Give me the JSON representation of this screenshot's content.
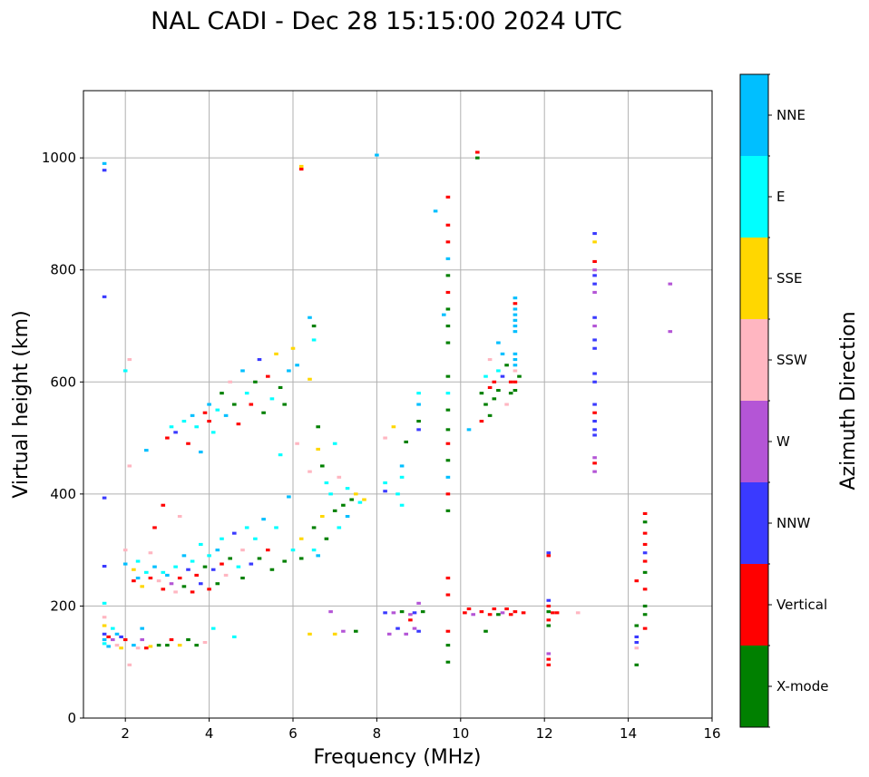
{
  "chart_data": {
    "type": "scatter",
    "title": "NAL CADI - Dec 28 15:15:00 2024 UTC",
    "xlabel": "Frequency (MHz)",
    "ylabel": "Virtual height (km)",
    "xlim": [
      1,
      16
    ],
    "ylim": [
      0,
      1120
    ],
    "xticks": [
      2,
      4,
      6,
      8,
      10,
      12,
      14,
      16
    ],
    "yticks": [
      0,
      200,
      400,
      600,
      800,
      1000
    ],
    "grid": true,
    "colorbar": {
      "title": "Azimuth Direction",
      "categories": [
        {
          "name": "X-mode",
          "color": "#008000"
        },
        {
          "name": "Vertical",
          "color": "#ff0000"
        },
        {
          "name": "NNW",
          "color": "#3a3aff"
        },
        {
          "name": "W",
          "color": "#b455d6"
        },
        {
          "name": "SSW",
          "color": "#ffb6c1"
        },
        {
          "name": "SSE",
          "color": "#ffd700"
        },
        {
          "name": "E",
          "color": "#00ffff"
        },
        {
          "name": "NNE",
          "color": "#00bfff"
        }
      ]
    },
    "point_width_mhz": 0.1,
    "point_height_km": 5,
    "points": [
      [
        1.5,
        990,
        "NNE"
      ],
      [
        1.5,
        978,
        "NNW"
      ],
      [
        1.5,
        752,
        "NNW"
      ],
      [
        1.5,
        393,
        "NNW"
      ],
      [
        1.5,
        271,
        "NNW"
      ],
      [
        1.5,
        205,
        "E"
      ],
      [
        1.5,
        180,
        "SSW"
      ],
      [
        1.5,
        165,
        "SSE"
      ],
      [
        1.5,
        150,
        "NNW"
      ],
      [
        1.5,
        140,
        "NNE"
      ],
      [
        1.5,
        133,
        "E"
      ],
      [
        1.6,
        145,
        "Vertical"
      ],
      [
        1.6,
        128,
        "NNE"
      ],
      [
        1.7,
        160,
        "E"
      ],
      [
        1.7,
        140,
        "W"
      ],
      [
        1.8,
        150,
        "NNE"
      ],
      [
        1.8,
        130,
        "SSW"
      ],
      [
        1.9,
        145,
        "NNW"
      ],
      [
        1.9,
        125,
        "SSE"
      ],
      [
        2.0,
        140,
        "Vertical"
      ],
      [
        2.0,
        620,
        "E"
      ],
      [
        2.0,
        300,
        "SSW"
      ],
      [
        2.0,
        275,
        "NNE"
      ],
      [
        2.1,
        95,
        "SSW"
      ],
      [
        2.1,
        640,
        "SSW"
      ],
      [
        2.1,
        450,
        "SSW"
      ],
      [
        2.2,
        265,
        "SSE"
      ],
      [
        2.2,
        245,
        "Vertical"
      ],
      [
        2.2,
        130,
        "NNE"
      ],
      [
        2.3,
        280,
        "E"
      ],
      [
        2.3,
        250,
        "NNE"
      ],
      [
        2.3,
        125,
        "SSW"
      ],
      [
        2.4,
        235,
        "SSE"
      ],
      [
        2.4,
        160,
        "NNE"
      ],
      [
        2.4,
        140,
        "W"
      ],
      [
        2.5,
        478,
        "NNE"
      ],
      [
        2.5,
        260,
        "E"
      ],
      [
        2.5,
        125,
        "Vertical"
      ],
      [
        2.6,
        250,
        "Vertical"
      ],
      [
        2.6,
        295,
        "SSW"
      ],
      [
        2.6,
        128,
        "SSE"
      ],
      [
        2.7,
        270,
        "NNE"
      ],
      [
        2.7,
        340,
        "Vertical"
      ],
      [
        2.8,
        245,
        "SSW"
      ],
      [
        2.8,
        130,
        "X-mode"
      ],
      [
        2.9,
        230,
        "Vertical"
      ],
      [
        2.9,
        260,
        "E"
      ],
      [
        2.9,
        380,
        "Vertical"
      ],
      [
        3.0,
        500,
        "Vertical"
      ],
      [
        3.0,
        255,
        "NNE"
      ],
      [
        3.0,
        130,
        "X-mode"
      ],
      [
        3.1,
        520,
        "E"
      ],
      [
        3.1,
        240,
        "W"
      ],
      [
        3.1,
        140,
        "Vertical"
      ],
      [
        3.2,
        510,
        "NNW"
      ],
      [
        3.2,
        270,
        "E"
      ],
      [
        3.2,
        225,
        "SSW"
      ],
      [
        3.3,
        250,
        "Vertical"
      ],
      [
        3.3,
        360,
        "SSW"
      ],
      [
        3.3,
        130,
        "SSE"
      ],
      [
        3.4,
        530,
        "E"
      ],
      [
        3.4,
        290,
        "NNE"
      ],
      [
        3.4,
        235,
        "X-mode"
      ],
      [
        3.5,
        490,
        "Vertical"
      ],
      [
        3.5,
        265,
        "NNW"
      ],
      [
        3.5,
        140,
        "X-mode"
      ],
      [
        3.6,
        540,
        "NNE"
      ],
      [
        3.6,
        280,
        "E"
      ],
      [
        3.6,
        225,
        "Vertical"
      ],
      [
        3.7,
        520,
        "E"
      ],
      [
        3.7,
        255,
        "Vertical"
      ],
      [
        3.7,
        130,
        "X-mode"
      ],
      [
        3.8,
        475,
        "NNE"
      ],
      [
        3.8,
        310,
        "E"
      ],
      [
        3.8,
        240,
        "NNW"
      ],
      [
        3.9,
        545,
        "Vertical"
      ],
      [
        3.9,
        270,
        "X-mode"
      ],
      [
        3.9,
        135,
        "SSW"
      ],
      [
        4.0,
        530,
        "Vertical"
      ],
      [
        4.0,
        560,
        "NNE"
      ],
      [
        4.0,
        290,
        "E"
      ],
      [
        4.0,
        230,
        "Vertical"
      ],
      [
        4.1,
        510,
        "E"
      ],
      [
        4.1,
        265,
        "NNW"
      ],
      [
        4.1,
        160,
        "E"
      ],
      [
        4.2,
        550,
        "E"
      ],
      [
        4.2,
        300,
        "NNE"
      ],
      [
        4.2,
        240,
        "X-mode"
      ],
      [
        4.3,
        580,
        "X-mode"
      ],
      [
        4.3,
        275,
        "Vertical"
      ],
      [
        4.3,
        320,
        "E"
      ],
      [
        4.4,
        540,
        "NNE"
      ],
      [
        4.4,
        255,
        "SSW"
      ],
      [
        4.5,
        600,
        "SSW"
      ],
      [
        4.5,
        285,
        "X-mode"
      ],
      [
        4.6,
        560,
        "X-mode"
      ],
      [
        4.6,
        330,
        "NNW"
      ],
      [
        4.6,
        145,
        "E"
      ],
      [
        4.7,
        525,
        "Vertical"
      ],
      [
        4.7,
        270,
        "E"
      ],
      [
        4.8,
        620,
        "NNE"
      ],
      [
        4.8,
        300,
        "SSW"
      ],
      [
        4.8,
        250,
        "X-mode"
      ],
      [
        4.9,
        580,
        "E"
      ],
      [
        4.9,
        340,
        "E"
      ],
      [
        5.0,
        560,
        "Vertical"
      ],
      [
        5.0,
        275,
        "NNW"
      ],
      [
        5.1,
        600,
        "X-mode"
      ],
      [
        5.1,
        320,
        "E"
      ],
      [
        5.2,
        640,
        "NNW"
      ],
      [
        5.2,
        285,
        "X-mode"
      ],
      [
        5.3,
        545,
        "X-mode"
      ],
      [
        5.3,
        355,
        "NNE"
      ],
      [
        5.4,
        610,
        "Vertical"
      ],
      [
        5.4,
        300,
        "Vertical"
      ],
      [
        5.5,
        570,
        "E"
      ],
      [
        5.5,
        265,
        "X-mode"
      ],
      [
        5.6,
        650,
        "SSE"
      ],
      [
        5.6,
        340,
        "E"
      ],
      [
        5.7,
        590,
        "X-mode"
      ],
      [
        5.7,
        470,
        "E"
      ],
      [
        5.8,
        560,
        "X-mode"
      ],
      [
        5.8,
        280,
        "X-mode"
      ],
      [
        5.9,
        620,
        "NNE"
      ],
      [
        5.9,
        395,
        "NNE"
      ],
      [
        6.0,
        660,
        "SSE"
      ],
      [
        6.0,
        300,
        "E"
      ],
      [
        6.1,
        630,
        "NNE"
      ],
      [
        6.1,
        490,
        "SSW"
      ],
      [
        6.2,
        320,
        "SSE"
      ],
      [
        6.2,
        285,
        "X-mode"
      ],
      [
        6.2,
        985,
        "SSE"
      ],
      [
        6.2,
        980,
        "Vertical"
      ],
      [
        6.4,
        715,
        "NNE"
      ],
      [
        6.4,
        605,
        "SSE"
      ],
      [
        6.4,
        440,
        "SSW"
      ],
      [
        6.4,
        150,
        "SSE"
      ],
      [
        6.5,
        700,
        "X-mode"
      ],
      [
        6.5,
        675,
        "E"
      ],
      [
        6.5,
        300,
        "E"
      ],
      [
        6.5,
        340,
        "X-mode"
      ],
      [
        6.6,
        520,
        "X-mode"
      ],
      [
        6.6,
        480,
        "SSE"
      ],
      [
        6.6,
        290,
        "NNE"
      ],
      [
        6.7,
        450,
        "X-mode"
      ],
      [
        6.7,
        360,
        "SSE"
      ],
      [
        6.8,
        420,
        "E"
      ],
      [
        6.8,
        320,
        "X-mode"
      ],
      [
        6.9,
        400,
        "E"
      ],
      [
        6.9,
        190,
        "W"
      ],
      [
        7.0,
        490,
        "E"
      ],
      [
        7.0,
        370,
        "X-mode"
      ],
      [
        7.0,
        150,
        "SSE"
      ],
      [
        7.1,
        430,
        "SSW"
      ],
      [
        7.1,
        340,
        "E"
      ],
      [
        7.2,
        380,
        "X-mode"
      ],
      [
        7.2,
        155,
        "W"
      ],
      [
        7.3,
        410,
        "E"
      ],
      [
        7.3,
        360,
        "NNE"
      ],
      [
        7.4,
        390,
        "X-mode"
      ],
      [
        7.5,
        400,
        "SSE"
      ],
      [
        7.5,
        155,
        "X-mode"
      ],
      [
        7.6,
        385,
        "E"
      ],
      [
        7.7,
        390,
        "SSE"
      ],
      [
        8.0,
        1005,
        "NNE"
      ],
      [
        8.2,
        500,
        "SSW"
      ],
      [
        8.2,
        420,
        "E"
      ],
      [
        8.2,
        405,
        "NNW"
      ],
      [
        8.2,
        188,
        "NNW"
      ],
      [
        8.3,
        150,
        "W"
      ],
      [
        8.4,
        520,
        "SSE"
      ],
      [
        8.4,
        188,
        "W"
      ],
      [
        8.5,
        400,
        "E"
      ],
      [
        8.5,
        160,
        "NNW"
      ],
      [
        8.6,
        450,
        "NNE"
      ],
      [
        8.6,
        430,
        "E"
      ],
      [
        8.6,
        380,
        "E"
      ],
      [
        8.6,
        190,
        "X-mode"
      ],
      [
        8.7,
        493,
        "X-mode"
      ],
      [
        8.7,
        150,
        "W"
      ],
      [
        8.8,
        175,
        "Vertical"
      ],
      [
        8.8,
        185,
        "W"
      ],
      [
        8.9,
        160,
        "W"
      ],
      [
        8.9,
        188,
        "NNW"
      ],
      [
        9.0,
        580,
        "E"
      ],
      [
        9.0,
        560,
        "NNE"
      ],
      [
        9.0,
        530,
        "X-mode"
      ],
      [
        9.0,
        515,
        "NNW"
      ],
      [
        9.0,
        205,
        "W"
      ],
      [
        9.0,
        155,
        "NNW"
      ],
      [
        9.1,
        190,
        "X-mode"
      ],
      [
        9.4,
        905,
        "NNE"
      ],
      [
        9.6,
        720,
        "NNE"
      ],
      [
        9.7,
        930,
        "Vertical"
      ],
      [
        9.7,
        880,
        "Vertical"
      ],
      [
        9.7,
        850,
        "Vertical"
      ],
      [
        9.7,
        820,
        "NNE"
      ],
      [
        9.7,
        790,
        "X-mode"
      ],
      [
        9.7,
        760,
        "Vertical"
      ],
      [
        9.7,
        730,
        "X-mode"
      ],
      [
        9.7,
        700,
        "X-mode"
      ],
      [
        9.7,
        670,
        "X-mode"
      ],
      [
        9.7,
        610,
        "X-mode"
      ],
      [
        9.7,
        580,
        "E"
      ],
      [
        9.7,
        550,
        "X-mode"
      ],
      [
        9.7,
        515,
        "X-mode"
      ],
      [
        9.7,
        490,
        "Vertical"
      ],
      [
        9.7,
        460,
        "X-mode"
      ],
      [
        9.7,
        430,
        "NNE"
      ],
      [
        9.7,
        400,
        "Vertical"
      ],
      [
        9.7,
        370,
        "X-mode"
      ],
      [
        9.7,
        250,
        "Vertical"
      ],
      [
        9.7,
        220,
        "Vertical"
      ],
      [
        9.7,
        155,
        "Vertical"
      ],
      [
        9.7,
        130,
        "X-mode"
      ],
      [
        9.7,
        100,
        "X-mode"
      ],
      [
        10.1,
        188,
        "Vertical"
      ],
      [
        10.2,
        195,
        "Vertical"
      ],
      [
        10.2,
        515,
        "NNE"
      ],
      [
        10.3,
        185,
        "W"
      ],
      [
        10.4,
        1010,
        "Vertical"
      ],
      [
        10.4,
        1000,
        "X-mode"
      ],
      [
        10.5,
        580,
        "X-mode"
      ],
      [
        10.5,
        530,
        "Vertical"
      ],
      [
        10.5,
        190,
        "Vertical"
      ],
      [
        10.6,
        610,
        "E"
      ],
      [
        10.6,
        560,
        "X-mode"
      ],
      [
        10.6,
        155,
        "X-mode"
      ],
      [
        10.7,
        640,
        "SSW"
      ],
      [
        10.7,
        590,
        "Vertical"
      ],
      [
        10.7,
        540,
        "X-mode"
      ],
      [
        10.7,
        185,
        "Vertical"
      ],
      [
        10.8,
        600,
        "Vertical"
      ],
      [
        10.8,
        570,
        "X-mode"
      ],
      [
        10.8,
        195,
        "Vertical"
      ],
      [
        10.9,
        670,
        "NNE"
      ],
      [
        10.9,
        620,
        "E"
      ],
      [
        10.9,
        585,
        "X-mode"
      ],
      [
        10.9,
        185,
        "X-mode"
      ],
      [
        11.0,
        650,
        "NNE"
      ],
      [
        11.0,
        610,
        "NNW"
      ],
      [
        11.0,
        188,
        "W"
      ],
      [
        11.1,
        630,
        "X-mode"
      ],
      [
        11.1,
        560,
        "SSW"
      ],
      [
        11.1,
        195,
        "Vertical"
      ],
      [
        11.2,
        600,
        "Vertical"
      ],
      [
        11.2,
        580,
        "X-mode"
      ],
      [
        11.2,
        185,
        "Vertical"
      ],
      [
        11.3,
        750,
        "NNE"
      ],
      [
        11.3,
        740,
        "Vertical"
      ],
      [
        11.3,
        730,
        "NNE"
      ],
      [
        11.3,
        720,
        "NNE"
      ],
      [
        11.3,
        710,
        "NNE"
      ],
      [
        11.3,
        700,
        "NNE"
      ],
      [
        11.3,
        690,
        "NNE"
      ],
      [
        11.3,
        650,
        "NNE"
      ],
      [
        11.3,
        640,
        "NNE"
      ],
      [
        11.3,
        630,
        "NNE"
      ],
      [
        11.3,
        620,
        "SSW"
      ],
      [
        11.3,
        600,
        "Vertical"
      ],
      [
        11.3,
        585,
        "X-mode"
      ],
      [
        11.3,
        190,
        "Vertical"
      ],
      [
        11.4,
        610,
        "X-mode"
      ],
      [
        11.5,
        188,
        "Vertical"
      ],
      [
        12.1,
        295,
        "NNW"
      ],
      [
        12.1,
        290,
        "Vertical"
      ],
      [
        12.1,
        210,
        "NNW"
      ],
      [
        12.1,
        200,
        "Vertical"
      ],
      [
        12.1,
        190,
        "X-mode"
      ],
      [
        12.1,
        175,
        "Vertical"
      ],
      [
        12.1,
        165,
        "X-mode"
      ],
      [
        12.1,
        115,
        "W"
      ],
      [
        12.1,
        105,
        "Vertical"
      ],
      [
        12.1,
        95,
        "Vertical"
      ],
      [
        12.2,
        188,
        "Vertical"
      ],
      [
        12.3,
        188,
        "Vertical"
      ],
      [
        12.8,
        188,
        "SSW"
      ],
      [
        13.2,
        865,
        "NNW"
      ],
      [
        13.2,
        850,
        "SSE"
      ],
      [
        13.2,
        815,
        "Vertical"
      ],
      [
        13.2,
        800,
        "W"
      ],
      [
        13.2,
        790,
        "NNW"
      ],
      [
        13.2,
        775,
        "NNW"
      ],
      [
        13.2,
        760,
        "W"
      ],
      [
        13.2,
        715,
        "NNW"
      ],
      [
        13.2,
        700,
        "W"
      ],
      [
        13.2,
        675,
        "NNW"
      ],
      [
        13.2,
        660,
        "NNW"
      ],
      [
        13.2,
        615,
        "NNW"
      ],
      [
        13.2,
        600,
        "NNW"
      ],
      [
        13.2,
        560,
        "NNW"
      ],
      [
        13.2,
        545,
        "Vertical"
      ],
      [
        13.2,
        530,
        "NNW"
      ],
      [
        13.2,
        515,
        "NNW"
      ],
      [
        13.2,
        505,
        "NNW"
      ],
      [
        13.2,
        465,
        "W"
      ],
      [
        13.2,
        455,
        "Vertical"
      ],
      [
        13.2,
        440,
        "W"
      ],
      [
        14.2,
        245,
        "Vertical"
      ],
      [
        14.2,
        165,
        "X-mode"
      ],
      [
        14.2,
        145,
        "NNW"
      ],
      [
        14.2,
        135,
        "NNW"
      ],
      [
        14.2,
        125,
        "SSW"
      ],
      [
        14.2,
        95,
        "X-mode"
      ],
      [
        14.4,
        365,
        "Vertical"
      ],
      [
        14.4,
        350,
        "X-mode"
      ],
      [
        14.4,
        330,
        "Vertical"
      ],
      [
        14.4,
        310,
        "Vertical"
      ],
      [
        14.4,
        295,
        "NNW"
      ],
      [
        14.4,
        280,
        "Vertical"
      ],
      [
        14.4,
        260,
        "X-mode"
      ],
      [
        14.4,
        230,
        "Vertical"
      ],
      [
        14.4,
        200,
        "X-mode"
      ],
      [
        14.4,
        185,
        "X-mode"
      ],
      [
        14.4,
        160,
        "Vertical"
      ],
      [
        15.0,
        775,
        "W"
      ],
      [
        15.0,
        690,
        "W"
      ]
    ]
  }
}
